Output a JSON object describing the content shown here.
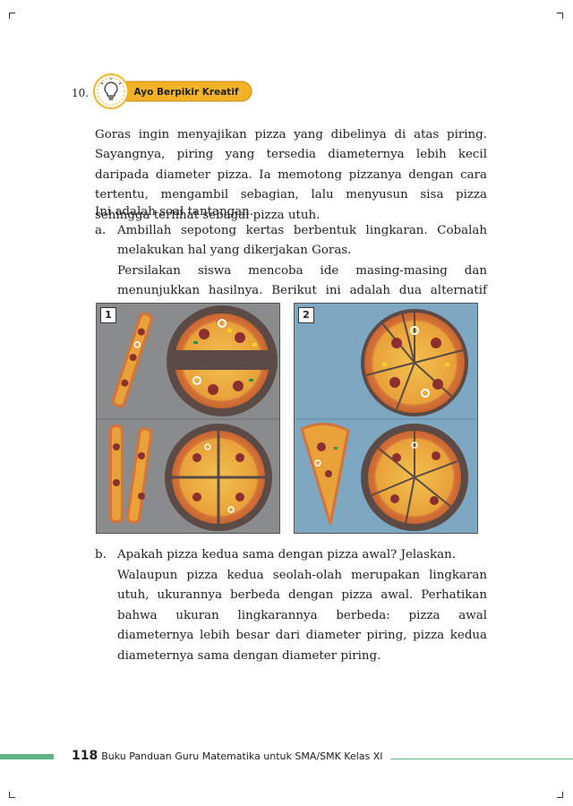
{
  "question": {
    "number": "10.",
    "badge_label": "Ayo Berpikir Kreatif",
    "intro": "Goras ingin menyajikan pizza yang dibelinya di atas piring. Sayangnya, piring yang tersedia diameternya lebih kecil daripada diameter pizza. Ia memotong pizzanya dengan cara tertentu, mengambil sebagian, lalu menyusun sisa pizza sehingga terlihat sebagai pizza utuh.",
    "challenge": "Ini adalah soal tantangan."
  },
  "part_a": {
    "label": "a.",
    "prompt": "Ambillah sepotong kertas berbentuk lingkaran. Cobalah melakukan hal yang dikerjakan Goras.",
    "answer": "Persilakan siswa mencoba ide masing-masing dan menunjukkan hasilnya. Berikut ini adalah dua alternatif jawaban."
  },
  "figure": {
    "panel_1_label": "1",
    "panel_2_label": "2",
    "colors": {
      "gray_bg": "#8a8b8d",
      "blue_bg": "#7ea7c2",
      "plate": "#5b4a45",
      "crust": "#d4733a",
      "sauce": "#e9a13a",
      "cheese": "#f2c14e"
    }
  },
  "part_b": {
    "label": "b.",
    "prompt": "Apakah pizza kedua sama dengan pizza awal? Jelaskan.",
    "answer": "Walaupun pizza kedua seolah-olah merupakan lingkaran utuh, ukurannya berbeda dengan pizza awal. Perhatikan bahwa ukuran lingkarannya berbeda: pizza awal diameternya lebih besar dari diameter piring, pizza kedua diameternya sama dengan diameter piring."
  },
  "footer": {
    "page_number": "118",
    "book_title": "Buku Panduan Guru Matematika untuk SMA/SMK Kelas XI"
  }
}
